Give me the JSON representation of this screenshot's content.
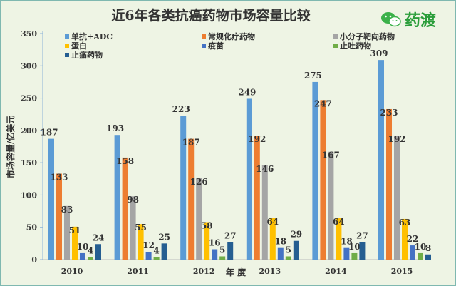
{
  "chart_data": {
    "type": "bar",
    "title": "近6年各类抗癌药物市场容量比较",
    "xlabel": "年 度",
    "ylabel": "市场容量/亿美元",
    "categories": [
      "2010",
      "2011",
      "2012",
      "2013",
      "2014",
      "2015"
    ],
    "ylim": [
      0,
      350
    ],
    "yticks": [
      0,
      50,
      100,
      150,
      200,
      250,
      300,
      350
    ],
    "grid": false,
    "legend_position": "top",
    "series": [
      {
        "name": "单抗+ADC",
        "color": "#5b9bd5",
        "values": [
          187,
          193,
          223,
          249,
          275,
          309
        ]
      },
      {
        "name": "常规化疗药物",
        "color": "#ed7d31",
        "values": [
          133,
          158,
          187,
          192,
          247,
          233
        ]
      },
      {
        "name": "小分子靶向药物",
        "color": "#a5a5a5",
        "values": [
          83,
          98,
          126,
          146,
          167,
          192
        ]
      },
      {
        "name": "蛋白",
        "color": "#ffc000",
        "values": [
          51,
          55,
          58,
          64,
          64,
          63
        ]
      },
      {
        "name": "疫苗",
        "color": "#4472c4",
        "values": [
          10,
          12,
          16,
          18,
          18,
          22
        ]
      },
      {
        "name": "止吐药物",
        "color": "#70ad47",
        "values": [
          4,
          4,
          5,
          5,
          10,
          10
        ]
      },
      {
        "name": "止痛药物",
        "color": "#255e91",
        "values": [
          24,
          25,
          27,
          29,
          27,
          8
        ]
      }
    ]
  },
  "logo": {
    "text": "药渡",
    "icon": "wechat-icon",
    "color": "#2a9d3a"
  }
}
